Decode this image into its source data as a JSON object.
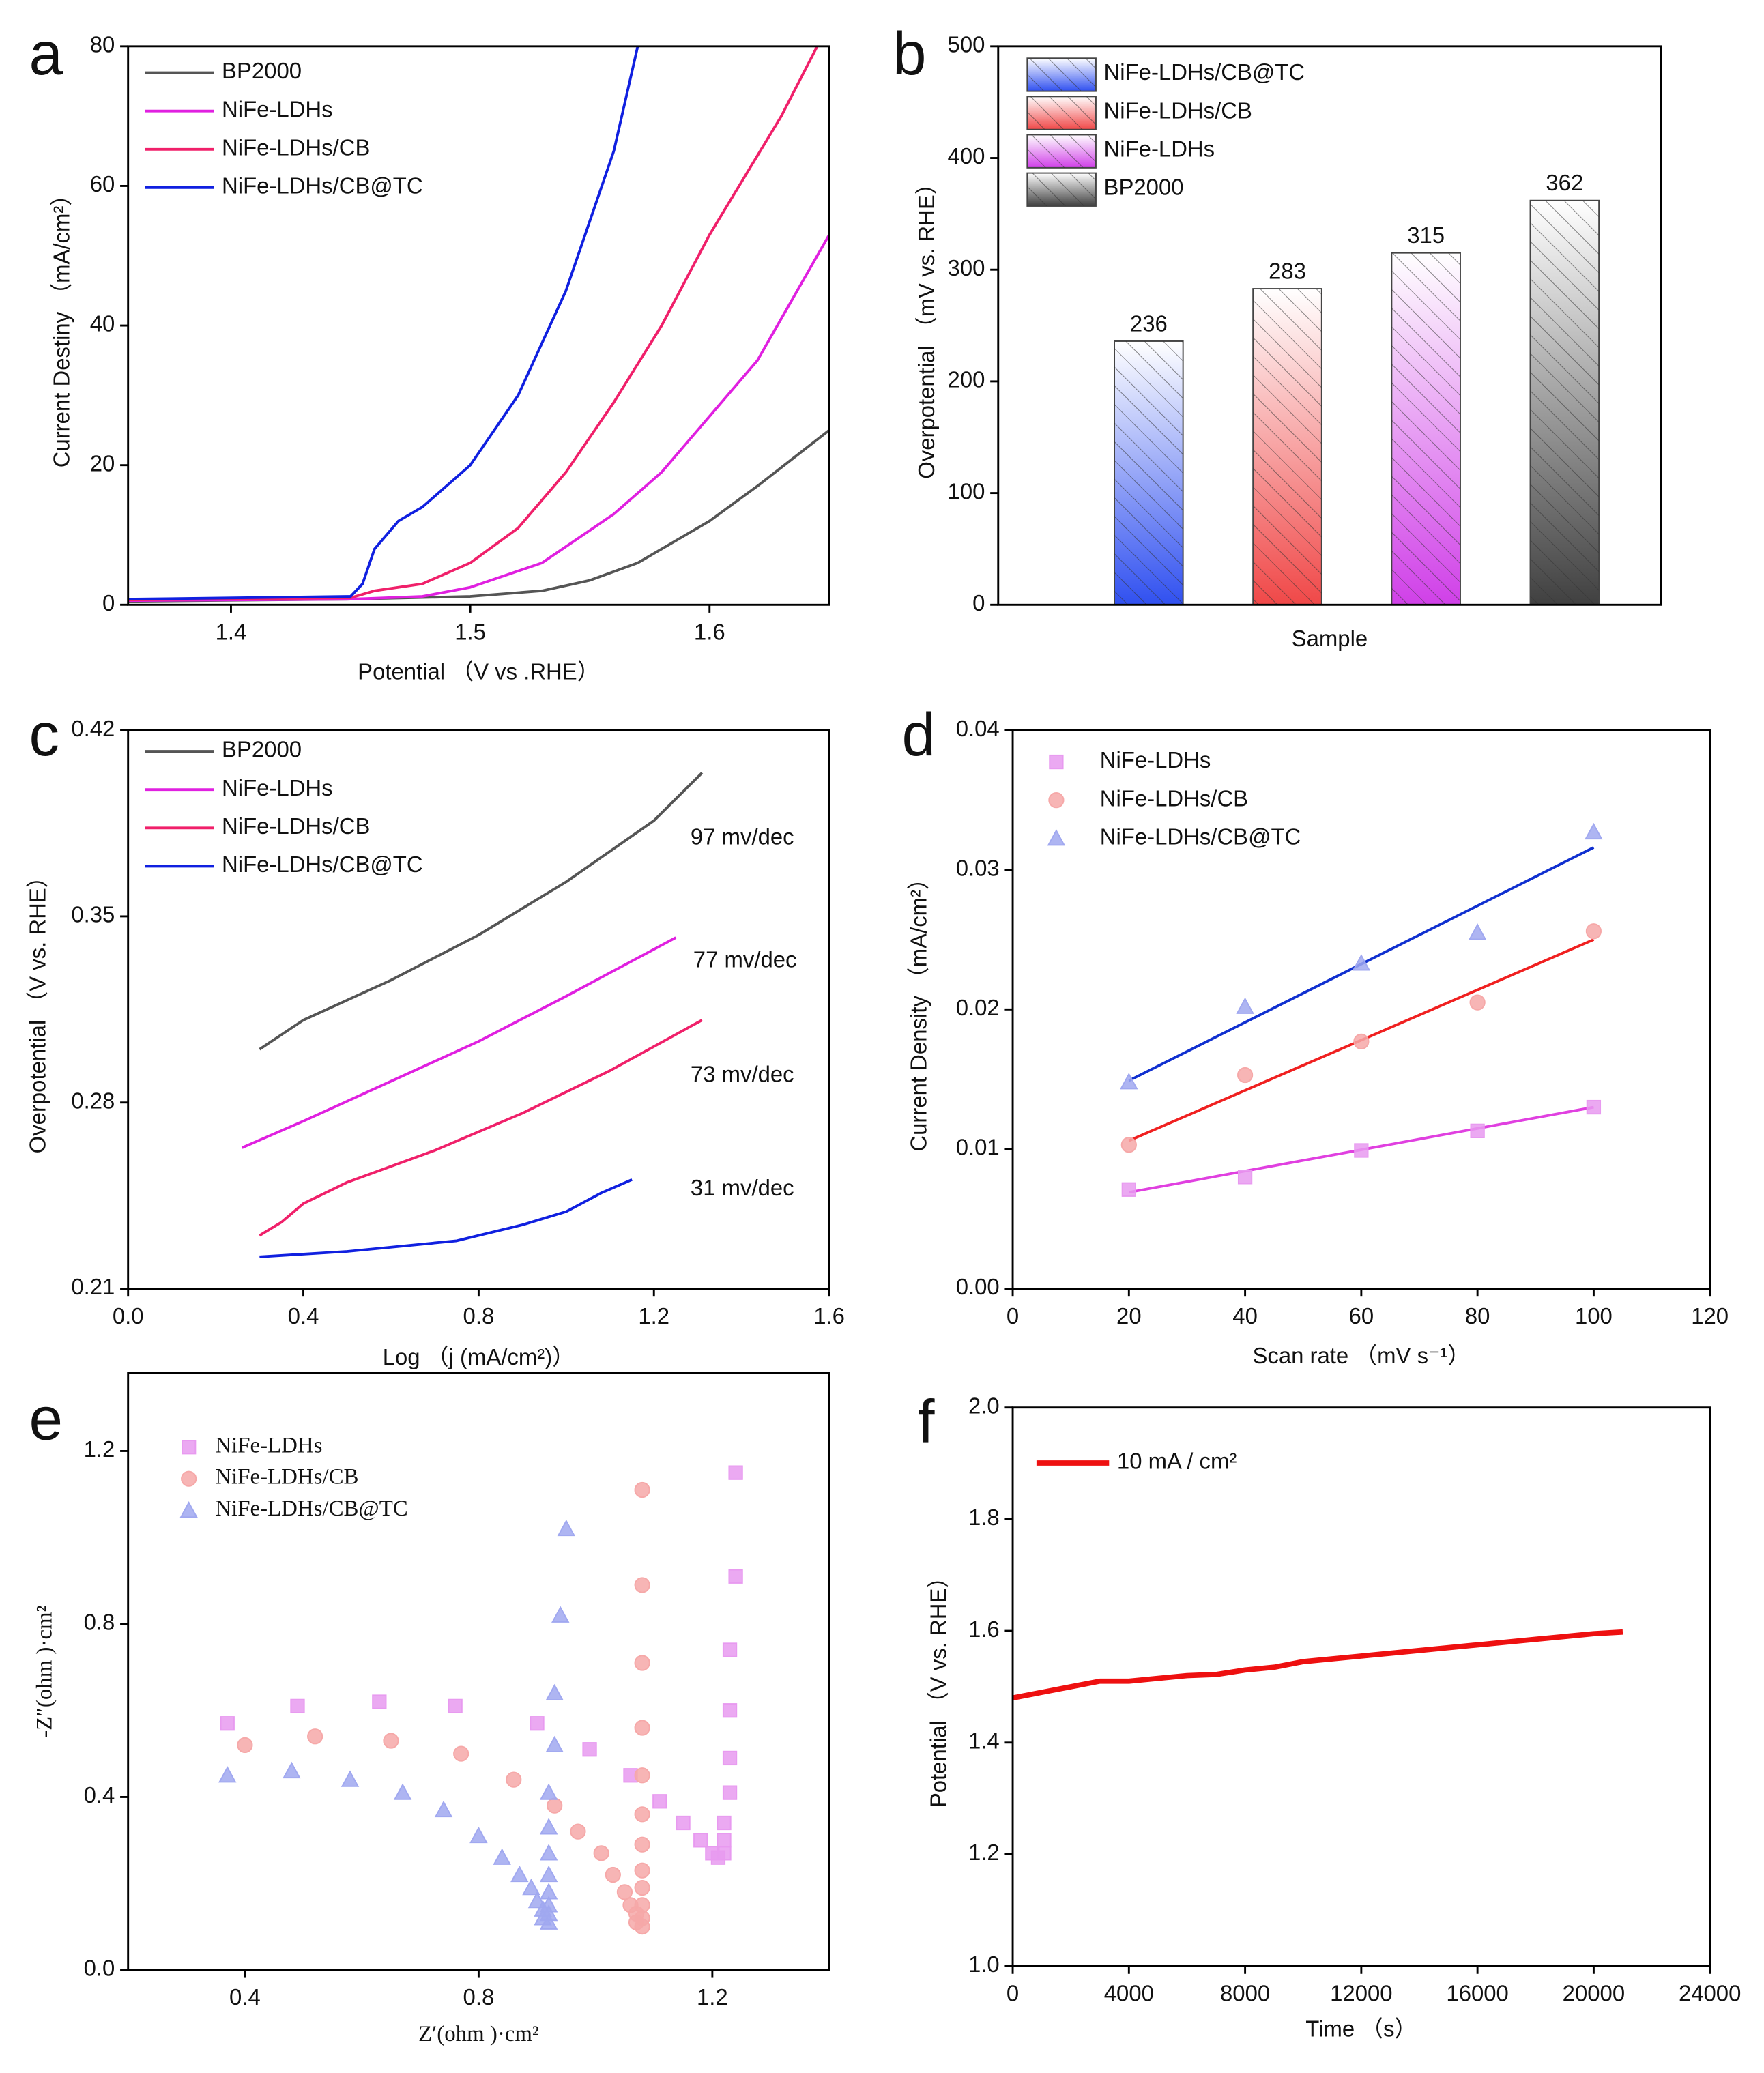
{
  "chart_data": [
    {
      "panel": "a",
      "type": "line",
      "xlabel": "Potential （V vs .RHE）",
      "ylabel": "Current Destiny （mA/cm²）",
      "xlim": [
        1.357,
        1.65
      ],
      "xticks": [
        1.4,
        1.5,
        1.6
      ],
      "ylim": [
        0,
        80
      ],
      "yticks": [
        0,
        20,
        40,
        60,
        80
      ],
      "series": [
        {
          "name": "BP2000",
          "color": "#555555",
          "x": [
            1.357,
            1.45,
            1.5,
            1.53,
            1.55,
            1.57,
            1.6,
            1.62,
            1.65
          ],
          "values": [
            0.5,
            0.8,
            1.2,
            2,
            3.5,
            6,
            12,
            17,
            25
          ]
        },
        {
          "name": "NiFe-LDHs",
          "color": "#e020e0",
          "x": [
            1.357,
            1.45,
            1.48,
            1.5,
            1.53,
            1.56,
            1.58,
            1.6,
            1.62,
            1.65
          ],
          "values": [
            0.6,
            0.8,
            1.2,
            2.5,
            6,
            13,
            19,
            27,
            35,
            53
          ]
        },
        {
          "name": "NiFe-LDHs/CB",
          "color": "#f0206a",
          "x": [
            1.357,
            1.45,
            1.46,
            1.48,
            1.5,
            1.52,
            1.54,
            1.56,
            1.58,
            1.6,
            1.63,
            1.645
          ],
          "values": [
            0.7,
            1,
            2,
            3,
            6,
            11,
            19,
            29,
            40,
            53,
            70,
            80
          ]
        },
        {
          "name": "NiFe-LDHs/CB@TC",
          "color": "#1020e0",
          "x": [
            1.357,
            1.45,
            1.455,
            1.46,
            1.47,
            1.48,
            1.5,
            1.52,
            1.54,
            1.56,
            1.57
          ],
          "values": [
            0.8,
            1.2,
            3,
            8,
            12,
            14,
            20,
            30,
            45,
            65,
            80
          ]
        }
      ]
    },
    {
      "panel": "b",
      "type": "bar",
      "xlabel": "Sample",
      "ylabel": "Overpotential （mV vs. RHE）",
      "categories": [
        "NiFe-LDHs/CB@TC",
        "NiFe-LDHs/CB",
        "NiFe-LDHs",
        "BP2000"
      ],
      "values": [
        236,
        283,
        315,
        362
      ],
      "colors": [
        "#3050f0",
        "#f04848",
        "#d040e8",
        "#404040"
      ],
      "ylim": [
        0,
        500
      ],
      "yticks": [
        0,
        100,
        200,
        300,
        400,
        500
      ],
      "hatch": true
    },
    {
      "panel": "c",
      "type": "line",
      "xlabel": "Log （j (mA/cm²)）",
      "ylabel": "Overpotential （V vs. RHE）",
      "xlim": [
        0,
        1.6
      ],
      "xticks": [
        {
          "value": 0,
          "label": "0.0"
        },
        0.4,
        0.8,
        1.2,
        1.6
      ],
      "ylim": [
        0.21,
        0.42
      ],
      "yticks": [
        0.21,
        0.28,
        0.35,
        0.42
      ],
      "annotations": [
        "97 mv/dec",
        "77 mv/dec",
        "73 mv/dec",
        "31 mv/dec"
      ],
      "series": [
        {
          "name": "BP2000",
          "color": "#555555",
          "x": [
            0.3,
            0.4,
            0.6,
            0.8,
            1.0,
            1.2,
            1.31
          ],
          "values": [
            0.3,
            0.311,
            0.326,
            0.343,
            0.363,
            0.386,
            0.404
          ]
        },
        {
          "name": "NiFe-LDHs",
          "color": "#e020e0",
          "x": [
            0.26,
            0.4,
            0.6,
            0.8,
            1.0,
            1.25
          ],
          "values": [
            0.263,
            0.273,
            0.288,
            0.303,
            0.32,
            0.342
          ]
        },
        {
          "name": "NiFe-LDHs/CB",
          "color": "#f0206a",
          "x": [
            0.3,
            0.35,
            0.4,
            0.5,
            0.7,
            0.9,
            1.1,
            1.31
          ],
          "values": [
            0.23,
            0.235,
            0.242,
            0.25,
            0.262,
            0.276,
            0.292,
            0.311
          ]
        },
        {
          "name": "NiFe-LDHs/CB@TC",
          "color": "#1020e0",
          "x": [
            0.3,
            0.5,
            0.75,
            0.9,
            1.0,
            1.08,
            1.15
          ],
          "values": [
            0.222,
            0.224,
            0.228,
            0.234,
            0.239,
            0.246,
            0.251
          ]
        }
      ]
    },
    {
      "panel": "d",
      "type": "scatter",
      "xlabel": "Scan rate （mV s⁻¹）",
      "ylabel": "Current Density （mA/cm²）",
      "xlim": [
        0,
        120
      ],
      "xticks": [
        0,
        20,
        40,
        60,
        80,
        100,
        120
      ],
      "ylim": [
        0,
        0.04
      ],
      "yticks": [
        {
          "value": 0,
          "label": "0.00"
        },
        0.01,
        0.02,
        0.03,
        0.04
      ],
      "series": [
        {
          "name": "NiFe-LDHs",
          "color": "#e89af0",
          "marker": "square",
          "x": [
            20,
            40,
            60,
            80,
            100
          ],
          "values": [
            0.0071,
            0.008,
            0.0099,
            0.0113,
            0.013
          ]
        },
        {
          "name": "NiFe-LDHs/CB",
          "color": "#f6a8a8",
          "marker": "circle",
          "x": [
            20,
            40,
            60,
            80,
            100
          ],
          "values": [
            0.0103,
            0.0153,
            0.0177,
            0.0205,
            0.0256
          ]
        },
        {
          "name": "NiFe-LDHs/CB@TC",
          "color": "#a0a8f0",
          "marker": "triangle",
          "x": [
            20,
            40,
            60,
            80,
            100
          ],
          "values": [
            0.0148,
            0.0202,
            0.0233,
            0.0255,
            0.0327
          ]
        }
      ],
      "fits": [
        {
          "color": "#e040e0",
          "x": [
            20,
            100
          ],
          "values": [
            0.0069,
            0.013
          ]
        },
        {
          "color": "#f02020",
          "x": [
            20,
            100
          ],
          "values": [
            0.0106,
            0.025
          ]
        },
        {
          "color": "#1030d0",
          "x": [
            20,
            100
          ],
          "values": [
            0.0149,
            0.0316
          ]
        }
      ]
    },
    {
      "panel": "e",
      "type": "scatter",
      "xlabel": "Z′(ohm )·cm²",
      "ylabel": "-Z″(ohm )·cm²",
      "xlim": [
        0.2,
        1.4
      ],
      "xticks": [
        0.4,
        0.8,
        1.2
      ],
      "ylim": [
        0,
        1.38
      ],
      "yticks": [
        {
          "value": 0,
          "label": "0.0"
        },
        0.4,
        0.8,
        1.2
      ],
      "series": [
        {
          "name": "NiFe-LDHs",
          "color": "#e89af0",
          "marker": "square",
          "x": [
            0.37,
            0.49,
            0.63,
            0.76,
            0.9,
            0.99,
            1.06,
            1.11,
            1.15,
            1.18,
            1.2,
            1.21,
            1.22,
            1.22,
            1.22,
            1.23,
            1.23,
            1.23,
            1.23,
            1.24,
            1.24
          ],
          "values": [
            0.57,
            0.61,
            0.62,
            0.61,
            0.57,
            0.51,
            0.45,
            0.39,
            0.34,
            0.3,
            0.27,
            0.26,
            0.27,
            0.3,
            0.34,
            0.41,
            0.49,
            0.6,
            0.74,
            0.91,
            1.15
          ]
        },
        {
          "name": "NiFe-LDHs/CB",
          "color": "#f6a8a8",
          "marker": "circle",
          "x": [
            0.4,
            0.52,
            0.65,
            0.77,
            0.86,
            0.93,
            0.97,
            1.01,
            1.03,
            1.05,
            1.06,
            1.07,
            1.07,
            1.08,
            1.08,
            1.08,
            1.08,
            1.08,
            1.08,
            1.08,
            1.08,
            1.08,
            1.08,
            1.08,
            1.08
          ],
          "values": [
            0.52,
            0.54,
            0.53,
            0.5,
            0.44,
            0.38,
            0.32,
            0.27,
            0.22,
            0.18,
            0.15,
            0.13,
            0.11,
            0.1,
            0.12,
            0.15,
            0.19,
            0.23,
            0.29,
            0.36,
            0.45,
            0.56,
            0.71,
            0.89,
            1.11
          ]
        },
        {
          "name": "NiFe-LDHs/CB@TC",
          "color": "#a0a8f0",
          "marker": "triangle",
          "x": [
            0.37,
            0.48,
            0.58,
            0.67,
            0.74,
            0.8,
            0.84,
            0.87,
            0.89,
            0.9,
            0.91,
            0.91,
            0.92,
            0.92,
            0.92,
            0.92,
            0.92,
            0.92,
            0.92,
            0.92,
            0.93,
            0.93,
            0.94,
            0.95
          ],
          "values": [
            0.45,
            0.46,
            0.44,
            0.41,
            0.37,
            0.31,
            0.26,
            0.22,
            0.19,
            0.16,
            0.14,
            0.12,
            0.11,
            0.13,
            0.15,
            0.18,
            0.22,
            0.27,
            0.33,
            0.41,
            0.52,
            0.64,
            0.82,
            1.02
          ]
        }
      ]
    },
    {
      "panel": "f",
      "type": "line",
      "xlabel": "Time （s）",
      "ylabel": "Potential （V vs. RHE）",
      "xlim": [
        0,
        24000
      ],
      "xticks": [
        0,
        4000,
        8000,
        12000,
        16000,
        20000,
        24000
      ],
      "ylim": [
        1.0,
        2.0
      ],
      "yticks": [
        {
          "value": 1.0,
          "label": "1.0"
        },
        1.2,
        1.4,
        1.6,
        1.8,
        {
          "value": 2.0,
          "label": "2.0"
        }
      ],
      "series": [
        {
          "name": "10 mA / cm²",
          "color": "#ee1010",
          "x": [
            0,
            1000,
            2000,
            3000,
            4000,
            5000,
            6000,
            7000,
            8000,
            9000,
            10000,
            12000,
            14000,
            16000,
            18000,
            20000,
            21000
          ],
          "values": [
            1.48,
            1.49,
            1.5,
            1.51,
            1.51,
            1.515,
            1.52,
            1.522,
            1.53,
            1.535,
            1.545,
            1.555,
            1.565,
            1.575,
            1.585,
            1.595,
            1.598
          ]
        }
      ]
    }
  ]
}
